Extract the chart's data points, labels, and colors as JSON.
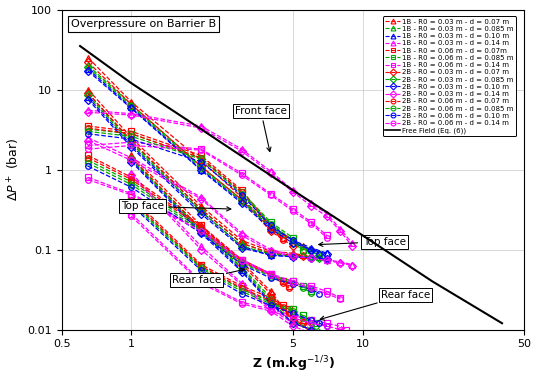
{
  "title": "Overpressure on Barrier B",
  "xlabel": "Z (m.kg⁻¹⁄³)",
  "ylabel": "ΔP⁺ (bar)",
  "xlim": [
    0.5,
    50
  ],
  "ylim": [
    0.01,
    100
  ],
  "free_field": {
    "Z": [
      0.6,
      1.0,
      2.0,
      5.0,
      10.0,
      20.0,
      40.0
    ],
    "P": [
      35,
      12,
      3.2,
      0.55,
      0.15,
      0.04,
      0.012
    ]
  },
  "series": [
    {
      "label": "1B - R0 = 0.03 m - d = 0.07 m",
      "color": "#FF0000",
      "marker": "^",
      "lc": "#FF0000",
      "Z": [
        0.65,
        1.0,
        2.0,
        3.0,
        4.0,
        5.0,
        5.5,
        5.8,
        6.0,
        6.1
      ],
      "Pf": [
        25,
        7.0,
        1.3,
        0.45,
        0.18,
        0.12,
        0.11,
        null,
        null,
        null
      ],
      "Pt": [
        10,
        2.5,
        0.35,
        0.13,
        0.095,
        0.09,
        0.085,
        null,
        null,
        null
      ],
      "Pr": [
        null,
        1.5,
        0.2,
        0.07,
        0.03,
        0.013,
        0.013,
        null,
        null,
        null
      ]
    },
    {
      "label": "1B - R0 = 0.03 m - d = 0.085 m",
      "color": "#00AA00",
      "marker": "^",
      "lc": "#00AA00",
      "Z": [
        0.65,
        1.0,
        2.0,
        3.0,
        4.0,
        5.0,
        6.0,
        6.5,
        7.0,
        7.2
      ],
      "Pf": [
        20,
        6.5,
        1.1,
        0.42,
        0.2,
        0.13,
        0.1,
        0.09,
        null,
        null
      ],
      "Pt": [
        9,
        2.2,
        0.32,
        0.12,
        0.09,
        0.085,
        0.082,
        0.08,
        null,
        null
      ],
      "Pr": [
        null,
        1.4,
        0.18,
        0.06,
        0.025,
        0.013,
        0.01,
        0.008,
        null,
        null
      ]
    },
    {
      "label": "1B - R0 = 0.03 m - d = 0.10 m",
      "color": "#0000FF",
      "marker": "^",
      "lc": "#0000FF",
      "Z": [
        0.65,
        1.0,
        2.0,
        3.0,
        4.0,
        5.0,
        6.0,
        7.0,
        7.5,
        7.8
      ],
      "Pf": [
        18,
        6.0,
        1.0,
        0.4,
        0.19,
        0.13,
        0.105,
        0.09,
        null,
        null
      ],
      "Pt": [
        8,
        2.0,
        0.3,
        0.11,
        0.085,
        0.082,
        0.08,
        0.078,
        null,
        null
      ],
      "Pr": [
        null,
        1.3,
        0.17,
        0.055,
        0.022,
        0.012,
        0.01,
        0.008,
        null,
        null
      ]
    },
    {
      "label": "1B - R0 = 0.03 m - d = 0.14 m",
      "color": "#FF00FF",
      "marker": "^",
      "lc": "#FF00FF",
      "Z": [
        0.65,
        1.0,
        2.0,
        3.0,
        4.0,
        5.0,
        6.0,
        7.0,
        8.0,
        9.0
      ],
      "Pf": [
        5.5,
        5.0,
        3.5,
        1.8,
        0.95,
        0.55,
        0.38,
        0.28,
        0.18,
        0.12
      ],
      "Pt": [
        2.5,
        1.4,
        0.45,
        0.16,
        0.1,
        0.085,
        0.08,
        0.075,
        0.07,
        0.065
      ],
      "Pr": [
        null,
        0.9,
        0.11,
        0.038,
        0.018,
        0.012,
        0.01,
        0.009,
        0.008,
        0.007
      ]
    },
    {
      "label": "1B - R0 = 0.06 m - d = 0.07m",
      "color": "#FF0000",
      "marker": "s",
      "lc": "#FF0000",
      "Z": [
        0.65,
        1.0,
        2.0,
        3.0,
        4.0,
        4.5,
        4.8,
        5.0,
        5.2,
        5.4
      ],
      "Pf": [
        3.5,
        3.0,
        1.5,
        0.55,
        0.2,
        0.14,
        null,
        null,
        null,
        null
      ],
      "Pt": [
        1.5,
        0.8,
        0.2,
        0.075,
        0.05,
        0.04,
        0.035,
        null,
        null,
        null
      ],
      "Pr": [
        null,
        0.45,
        0.065,
        0.035,
        0.025,
        0.02,
        0.018,
        0.015,
        null,
        null
      ]
    },
    {
      "label": "1B - R0 = 0.06 m - d = 0.085 m",
      "color": "#00AA00",
      "marker": "s",
      "lc": "#00AA00",
      "Z": [
        0.65,
        1.0,
        2.0,
        3.0,
        4.0,
        5.0,
        5.5,
        6.0,
        6.3,
        6.5
      ],
      "Pf": [
        3.2,
        2.8,
        1.4,
        0.52,
        0.22,
        0.14,
        0.1,
        null,
        null,
        null
      ],
      "Pt": [
        1.3,
        0.7,
        0.18,
        0.07,
        0.048,
        0.04,
        0.035,
        0.03,
        null,
        null
      ],
      "Pr": [
        null,
        0.4,
        0.06,
        0.032,
        0.022,
        0.018,
        0.015,
        0.013,
        0.012,
        null
      ]
    },
    {
      "label": "1B - R0 = 0.06 m - d = 0.14 m",
      "color": "#FF00FF",
      "marker": "s",
      "lc": "#FF00FF",
      "Z": [
        0.65,
        1.0,
        2.0,
        3.0,
        4.0,
        5.0,
        6.0,
        7.0,
        8.0,
        8.5
      ],
      "Pf": [
        2.0,
        2.2,
        1.8,
        0.9,
        0.5,
        0.32,
        0.22,
        0.15,
        null,
        null
      ],
      "Pt": [
        0.8,
        0.5,
        0.18,
        0.075,
        0.05,
        0.04,
        0.035,
        0.03,
        0.025,
        null
      ],
      "Pr": [
        null,
        0.28,
        0.04,
        0.022,
        0.018,
        0.015,
        0.013,
        0.012,
        0.011,
        0.01
      ]
    },
    {
      "label": "2B - R0 = 0.03 m - d = 0.07 m",
      "color": "#FF0000",
      "marker": "D",
      "lc": "#FF0000",
      "Z": [
        0.65,
        1.0,
        2.0,
        3.0,
        4.0,
        5.0,
        5.5,
        5.8,
        6.0,
        6.2
      ],
      "Pf": [
        22,
        6.5,
        1.1,
        0.42,
        0.17,
        0.11,
        null,
        null,
        null,
        null
      ],
      "Pt": [
        9,
        2.3,
        0.32,
        0.12,
        0.09,
        0.085,
        0.082,
        null,
        null,
        null
      ],
      "Pr": [
        null,
        1.4,
        0.18,
        0.065,
        0.028,
        0.013,
        0.012,
        0.011,
        null,
        null
      ]
    },
    {
      "label": "2B - R0 = 0.03 m - d = 0.085 m",
      "color": "#00AA00",
      "marker": "D",
      "lc": "#00AA00",
      "Z": [
        0.65,
        1.0,
        2.0,
        3.0,
        4.0,
        5.0,
        6.0,
        6.5,
        7.0,
        7.3
      ],
      "Pf": [
        19,
        6.2,
        1.05,
        0.4,
        0.19,
        0.12,
        0.095,
        0.085,
        null,
        null
      ],
      "Pt": [
        8.5,
        2.1,
        0.3,
        0.11,
        0.088,
        0.083,
        0.08,
        0.078,
        null,
        null
      ],
      "Pr": [
        null,
        1.35,
        0.17,
        0.058,
        0.023,
        0.012,
        0.01,
        0.009,
        0.008,
        null
      ]
    },
    {
      "label": "2B - R0 = 0.03 m - d = 0.10 m",
      "color": "#0000FF",
      "marker": "D",
      "lc": "#0000FF",
      "Z": [
        0.65,
        1.0,
        2.0,
        3.0,
        4.0,
        5.0,
        6.0,
        7.0,
        7.5,
        7.8
      ],
      "Pf": [
        17,
        5.8,
        0.98,
        0.38,
        0.18,
        0.12,
        0.1,
        0.088,
        null,
        null
      ],
      "Pt": [
        7.5,
        1.9,
        0.28,
        0.105,
        0.085,
        0.081,
        0.079,
        0.076,
        null,
        null
      ],
      "Pr": [
        null,
        1.25,
        0.16,
        0.053,
        0.021,
        0.012,
        0.01,
        0.008,
        0.007,
        null
      ]
    },
    {
      "label": "2B - R0 = 0.03 m - d = 0.14 m",
      "color": "#FF00FF",
      "marker": "D",
      "lc": "#FF00FF",
      "Z": [
        0.65,
        1.0,
        2.0,
        3.0,
        4.0,
        5.0,
        6.0,
        7.0,
        8.0,
        9.0
      ],
      "Pf": [
        5.2,
        4.8,
        3.3,
        1.7,
        0.9,
        0.52,
        0.35,
        0.26,
        0.17,
        0.11
      ],
      "Pt": [
        2.3,
        1.3,
        0.43,
        0.15,
        0.095,
        0.082,
        0.078,
        0.073,
        0.068,
        0.063
      ],
      "Pr": [
        null,
        0.85,
        0.1,
        0.036,
        0.017,
        0.011,
        0.009,
        0.008,
        0.007,
        0.007
      ]
    },
    {
      "label": "2B - R0 = 0.06 m - d = 0.07 m",
      "color": "#FF0000",
      "marker": "o",
      "lc": "#FF0000",
      "Z": [
        0.65,
        1.0,
        2.0,
        3.0,
        4.0,
        4.5,
        4.8,
        5.0,
        5.2,
        5.4
      ],
      "Pf": [
        3.3,
        2.8,
        1.4,
        0.52,
        0.19,
        0.13,
        null,
        null,
        null,
        null
      ],
      "Pt": [
        1.4,
        0.75,
        0.19,
        0.072,
        0.048,
        0.038,
        0.033,
        null,
        null,
        null
      ],
      "Pr": [
        null,
        0.42,
        0.062,
        0.033,
        0.023,
        0.019,
        0.016,
        0.014,
        null,
        null
      ]
    },
    {
      "label": "2B - R0 = 0.06 m - d = 0.085 m",
      "color": "#00AA00",
      "marker": "o",
      "lc": "#00AA00",
      "Z": [
        0.65,
        1.0,
        2.0,
        3.0,
        4.0,
        5.0,
        5.5,
        6.0,
        6.3,
        6.5
      ],
      "Pf": [
        3.0,
        2.6,
        1.35,
        0.5,
        0.21,
        0.13,
        0.095,
        null,
        null,
        null
      ],
      "Pt": [
        1.2,
        0.65,
        0.17,
        0.068,
        0.046,
        0.038,
        0.033,
        0.029,
        null,
        null
      ],
      "Pr": [
        null,
        0.38,
        0.058,
        0.03,
        0.021,
        0.017,
        0.014,
        0.012,
        0.011,
        null
      ]
    },
    {
      "label": "2B - R0 = 0.06 m - d = 0.10 m",
      "color": "#0000FF",
      "marker": "o",
      "lc": "#0000FF",
      "Z": [
        0.65,
        1.0,
        2.0,
        3.0,
        4.0,
        5.0,
        6.0,
        6.5,
        7.0,
        7.3
      ],
      "Pf": [
        2.8,
        2.4,
        1.25,
        0.48,
        0.2,
        0.13,
        0.098,
        0.088,
        null,
        null
      ],
      "Pt": [
        1.1,
        0.6,
        0.16,
        0.065,
        0.044,
        0.037,
        0.032,
        0.028,
        null,
        null
      ],
      "Pr": [
        null,
        0.36,
        0.055,
        0.028,
        0.02,
        0.016,
        0.013,
        0.012,
        0.011,
        null
      ]
    },
    {
      "label": "2B - R0 = 0.06 m - d = 0.14 m",
      "color": "#FF00FF",
      "marker": "o",
      "lc": "#FF00FF",
      "Z": [
        0.65,
        1.0,
        2.0,
        3.0,
        4.0,
        5.0,
        6.0,
        7.0,
        8.0,
        8.5
      ],
      "Pf": [
        1.8,
        2.0,
        1.75,
        0.85,
        0.48,
        0.3,
        0.21,
        0.14,
        null,
        null
      ],
      "Pt": [
        0.75,
        0.48,
        0.17,
        0.072,
        0.048,
        0.038,
        0.033,
        0.028,
        0.024,
        null
      ],
      "Pr": [
        null,
        0.26,
        0.038,
        0.021,
        0.017,
        0.014,
        0.012,
        0.011,
        0.01,
        0.009
      ]
    }
  ]
}
